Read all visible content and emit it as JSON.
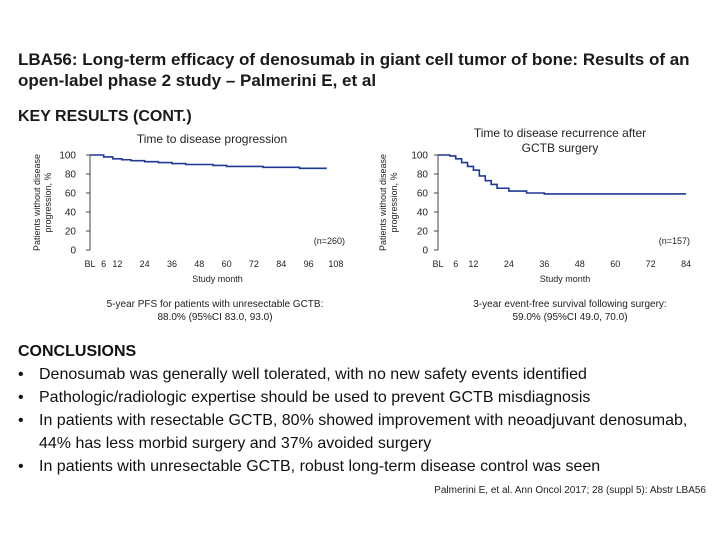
{
  "slide": {
    "title": "LBA56: Long-term efficacy of denosumab in giant cell tumor of bone: Results of an open-label phase 2 study – Palmerini E, et al",
    "section_heading": "KEY RESULTS (CONT.)",
    "citation": "Palmerini E, et al. Ann Oncol 2017; 28 (suppl 5): Abstr LBA56"
  },
  "chart_data": [
    {
      "type": "line",
      "title": "Time to disease progression",
      "ylabel": "Patients without disease progression, %",
      "xlabel": "Study month",
      "yticks": [
        0,
        20,
        40,
        60,
        80,
        100
      ],
      "xtick_labels": [
        "BL",
        "6",
        "12",
        "24",
        "36",
        "48",
        "60",
        "72",
        "84",
        "96",
        "108"
      ],
      "xtick_values": [
        0,
        6,
        12,
        24,
        36,
        48,
        60,
        72,
        84,
        96,
        108
      ],
      "xlim": [
        0,
        112
      ],
      "ylim": [
        0,
        100
      ],
      "n_label": "(n=260)",
      "series": [
        {
          "name": "Patients with unresectable GCTB",
          "step": true,
          "color": "#1f3a93",
          "x": [
            0,
            6,
            10,
            14,
            18,
            24,
            30,
            36,
            42,
            48,
            54,
            60,
            70,
            76,
            84,
            92,
            96,
            104
          ],
          "y": [
            100,
            98,
            96,
            95,
            94,
            93,
            92,
            91,
            90,
            90,
            89,
            88,
            88,
            87,
            87,
            86,
            86,
            86
          ]
        }
      ],
      "caption": "5-year PFS for patients with unresectable GCTB:\n88.0% (95%CI 83.0, 93.0)"
    },
    {
      "type": "line",
      "title": "Time to disease recurrence after GCTB surgery",
      "ylabel": "Patients without disease progression, %",
      "xlabel": "Study month",
      "yticks": [
        0,
        20,
        40,
        60,
        80,
        100
      ],
      "xtick_labels": [
        "BL",
        "6",
        "12",
        "24",
        "36",
        "48",
        "60",
        "72",
        "84"
      ],
      "xtick_values": [
        0,
        6,
        12,
        24,
        36,
        48,
        60,
        72,
        84
      ],
      "xlim": [
        0,
        86
      ],
      "ylim": [
        0,
        100
      ],
      "n_label": "(n=157)",
      "series": [
        {
          "name": "Patients after GCTB surgery",
          "step": true,
          "color": "#1f3a93",
          "x": [
            0,
            4,
            6,
            8,
            10,
            12,
            14,
            16,
            18,
            20,
            24,
            30,
            36,
            42,
            48,
            60,
            72,
            84
          ],
          "y": [
            100,
            99,
            96,
            92,
            88,
            84,
            78,
            73,
            69,
            65,
            62,
            60,
            59,
            59,
            59,
            59,
            59,
            59
          ]
        }
      ],
      "caption": "3-year event-free survival following surgery:\n59.0% (95%CI 49.0, 70.0)"
    }
  ],
  "conclusions": {
    "heading": "CONCLUSIONS",
    "items": [
      "Denosumab was generally well tolerated, with no new safety events identified",
      "Pathologic/radiologic expertise should be used to prevent GCTB misdiagnosis",
      "In patients with resectable GCTB, 80% showed improvement with neoadjuvant denosumab, 44% has less morbid surgery and 37% avoided surgery",
      "In patients with unresectable GCTB, robust long-term disease control was seen"
    ]
  }
}
